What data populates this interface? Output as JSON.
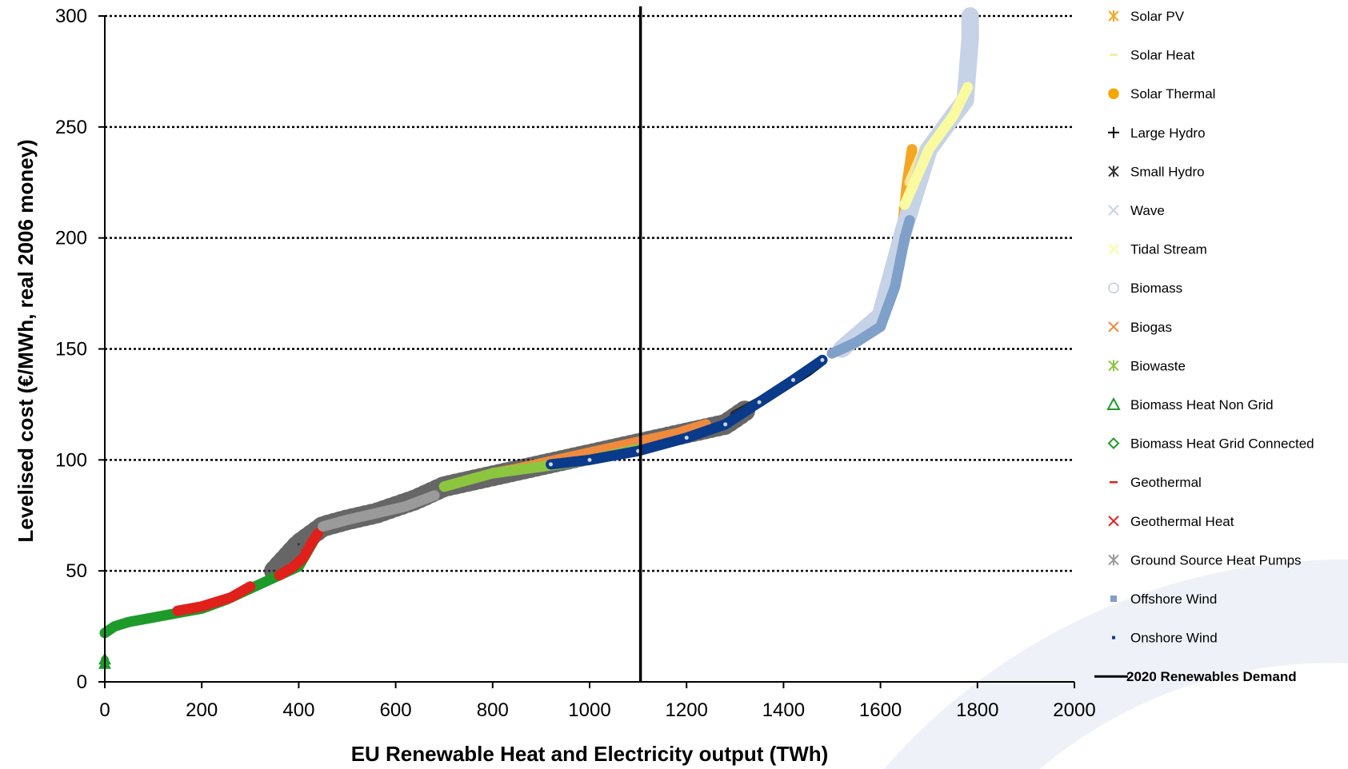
{
  "chart_data": {
    "type": "line",
    "title": "",
    "xlabel": "EU Renewable Heat and Electricity output  (TWh)",
    "ylabel": "Levelised cost (€/MWh, real 2006 money)",
    "xlim": [
      0,
      2000
    ],
    "ylim": [
      0,
      300
    ],
    "x_ticks": [
      "0",
      "200",
      "400",
      "600",
      "800",
      "1000",
      "1200",
      "1400",
      "1600",
      "1800",
      "2000"
    ],
    "y_ticks": [
      "0",
      "50",
      "100",
      "150",
      "200",
      "250",
      "300"
    ],
    "grid": "horizontal dotted",
    "legend_position": "right",
    "vertical_marker": {
      "name": "2020 Renewables Demand",
      "x": 1105,
      "color": "#000000"
    },
    "series": [
      {
        "name": "Solar PV",
        "color": "#f5a623",
        "marker": "asterisk",
        "points": [
          [
            1610,
            172
          ],
          [
            1630,
            190
          ],
          [
            1645,
            205
          ],
          [
            1655,
            225
          ],
          [
            1665,
            240
          ]
        ]
      },
      {
        "name": "Solar Heat",
        "color": "#f6e79a",
        "marker": "dash",
        "points": [
          [
            1660,
            225
          ],
          [
            1690,
            240
          ],
          [
            1720,
            248
          ],
          [
            1750,
            255
          ],
          [
            1775,
            265
          ],
          [
            1785,
            276
          ]
        ]
      },
      {
        "name": "Solar Thermal",
        "color": "#f7a600",
        "marker": "circle",
        "points": [
          [
            1600,
            160
          ],
          [
            1620,
            175
          ],
          [
            1640,
            195
          ],
          [
            1655,
            210
          ],
          [
            1662,
            222
          ]
        ]
      },
      {
        "name": "Large Hydro",
        "color": "#000000",
        "marker": "plus",
        "points": [
          [
            1300,
            120
          ],
          [
            1350,
            126
          ],
          [
            1400,
            133
          ],
          [
            1450,
            140
          ],
          [
            1480,
            145
          ]
        ]
      },
      {
        "name": "Small Hydro",
        "color": "#333333",
        "marker": "asterisk",
        "points": [
          [
            350,
            50
          ],
          [
            400,
            62
          ],
          [
            450,
            70
          ],
          [
            500,
            73
          ],
          [
            560,
            76
          ],
          [
            640,
            82
          ],
          [
            700,
            88
          ],
          [
            1280,
            116
          ],
          [
            1320,
            122
          ]
        ]
      },
      {
        "name": "Wave",
        "color": "#c6d3e6",
        "marker": "x",
        "points": [
          [
            1520,
            150
          ],
          [
            1600,
            165
          ],
          [
            1650,
            205
          ],
          [
            1700,
            240
          ],
          [
            1750,
            255
          ],
          [
            1775,
            262
          ],
          [
            1785,
            290
          ],
          [
            1785,
            300
          ]
        ]
      },
      {
        "name": "Tidal Stream",
        "color": "#fafaa0",
        "marker": "x",
        "points": [
          [
            1650,
            215
          ],
          [
            1700,
            240
          ],
          [
            1750,
            255
          ],
          [
            1780,
            268
          ]
        ]
      },
      {
        "name": "Biomass",
        "color": "#bfcde4",
        "marker": "circle",
        "points": [
          [
            800,
            94
          ],
          [
            900,
            97
          ],
          [
            1000,
            100
          ],
          [
            1100,
            105
          ],
          [
            1200,
            112
          ]
        ]
      },
      {
        "name": "Biogas",
        "color": "#f08a3c",
        "marker": "x",
        "points": [
          [
            800,
            94
          ],
          [
            850,
            96
          ],
          [
            1180,
            112
          ],
          [
            1240,
            116
          ]
        ]
      },
      {
        "name": "Biowaste",
        "color": "#8cc63f",
        "marker": "asterisk",
        "points": [
          [
            700,
            88
          ],
          [
            800,
            94
          ],
          [
            900,
            97
          ],
          [
            1000,
            100
          ],
          [
            1100,
            105
          ]
        ]
      },
      {
        "name": "Biomass Heat Non Grid",
        "color": "#1e9a2a",
        "marker": "triangle",
        "points": [
          [
            0,
            8
          ],
          [
            0,
            10
          ]
        ]
      },
      {
        "name": "Biomass Heat Grid Connected",
        "color": "#1e9a2a",
        "marker": "diamond",
        "points": [
          [
            0,
            22
          ],
          [
            20,
            25
          ],
          [
            50,
            27
          ],
          [
            100,
            29
          ],
          [
            150,
            31
          ],
          [
            200,
            33
          ],
          [
            250,
            37
          ],
          [
            300,
            42
          ],
          [
            350,
            47
          ],
          [
            400,
            52
          ],
          [
            440,
            67
          ]
        ]
      },
      {
        "name": "Geothermal",
        "color": "#e0201b",
        "marker": "dash",
        "points": [
          [
            150,
            32
          ],
          [
            200,
            34
          ],
          [
            260,
            38
          ],
          [
            300,
            43
          ]
        ]
      },
      {
        "name": "Geothermal Heat",
        "color": "#e0201b",
        "marker": "x",
        "points": [
          [
            360,
            48
          ],
          [
            390,
            52
          ],
          [
            410,
            56
          ],
          [
            425,
            62
          ],
          [
            440,
            67
          ]
        ]
      },
      {
        "name": "Ground Source Heat Pumps",
        "color": "#9a9a9a",
        "marker": "asterisk",
        "points": [
          [
            450,
            70
          ],
          [
            500,
            73
          ],
          [
            560,
            76
          ],
          [
            620,
            79
          ],
          [
            680,
            84
          ]
        ]
      },
      {
        "name": "Offshore Wind",
        "color": "#7fa0c8",
        "marker": "square",
        "points": [
          [
            1500,
            148
          ],
          [
            1550,
            153
          ],
          [
            1600,
            160
          ],
          [
            1630,
            178
          ],
          [
            1650,
            200
          ],
          [
            1660,
            208
          ]
        ]
      },
      {
        "name": "Onshore Wind",
        "color": "#0a3a8a",
        "marker": "point",
        "points": [
          [
            920,
            98
          ],
          [
            1000,
            100
          ],
          [
            1100,
            104
          ],
          [
            1200,
            110
          ],
          [
            1280,
            116
          ],
          [
            1350,
            126
          ],
          [
            1420,
            136
          ],
          [
            1480,
            145
          ]
        ]
      }
    ],
    "legend": [
      {
        "name": "Solar PV",
        "color": "#f5a623",
        "marker": "asterisk"
      },
      {
        "name": "Solar Heat",
        "color": "#f6e79a",
        "marker": "dash"
      },
      {
        "name": "Solar Thermal",
        "color": "#f7a600",
        "marker": "circle"
      },
      {
        "name": "Large Hydro",
        "color": "#000000",
        "marker": "plus"
      },
      {
        "name": "Small Hydro",
        "color": "#333333",
        "marker": "asterisk"
      },
      {
        "name": "Wave",
        "color": "#c6d3e6",
        "marker": "x"
      },
      {
        "name": "Tidal Stream",
        "color": "#fafaa0",
        "marker": "x"
      },
      {
        "name": "Biomass",
        "color": "#bfcde4",
        "marker": "circle"
      },
      {
        "name": "Biogas",
        "color": "#f08a3c",
        "marker": "x"
      },
      {
        "name": "Biowaste",
        "color": "#8cc63f",
        "marker": "asterisk"
      },
      {
        "name": "Biomass Heat Non Grid",
        "color": "#1e9a2a",
        "marker": "triangle"
      },
      {
        "name": "Biomass Heat Grid Connected",
        "color": "#1e9a2a",
        "marker": "diamond"
      },
      {
        "name": "Geothermal",
        "color": "#e0201b",
        "marker": "dash"
      },
      {
        "name": "Geothermal Heat",
        "color": "#e0201b",
        "marker": "x"
      },
      {
        "name": "Ground Source Heat Pumps",
        "color": "#9a9a9a",
        "marker": "asterisk"
      },
      {
        "name": "Offshore Wind",
        "color": "#7fa0c8",
        "marker": "square"
      },
      {
        "name": "Onshore Wind",
        "color": "#0a3a8a",
        "marker": "point"
      },
      {
        "name": "2020 Renewables Demand",
        "color": "#000000",
        "marker": "line"
      }
    ]
  }
}
